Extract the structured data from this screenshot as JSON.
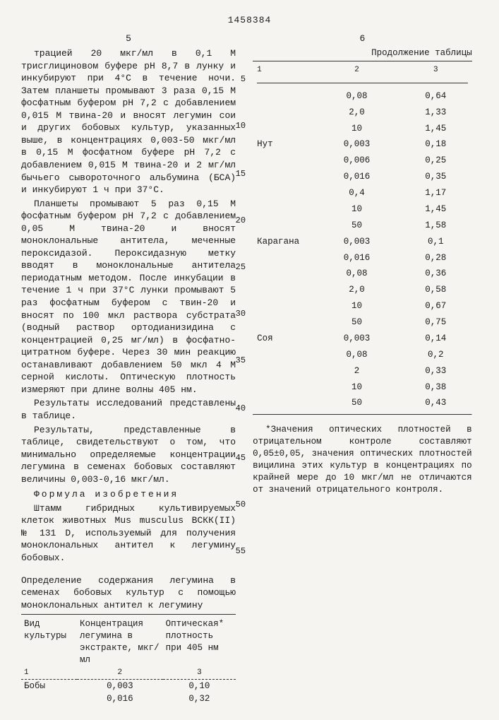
{
  "doc_number": "1458384",
  "left_page_num": "5",
  "right_page_num": "6",
  "cont_label": "Продолжение таблицы",
  "left_text": {
    "p1": "трацией 20 мкг/мл в 0,1 М трисглициновом буфере рН 8,7 в лунку и инкубируют при 4°С в течение ночи. Затем планшеты промывают 3 раза 0,15 М фосфатным буфером рН 7,2 с добавлением 0,015 М твина-20 и вносят легумин сои и других бобовых культур, указанных выше, в концентрациях 0,003-50 мкг/мл в 0,15 М фосфатном буфере рН 7,2 с добавлением 0,015 М твина-20 и 2 мг/мл бычьего сывороточного альбумина (БСА) и инкубируют 1 ч при 37°С.",
    "p2": "Планшеты промывают 5 раз 0,15 М фосфатным буфером рН 7,2 с добавлением 0,05 М твина-20 и вносят моноклональные антитела, меченные пероксидазой. Пероксидазную метку вводят в моноклональные антитела периодатным методом. После инкубации в течение 1 ч при 37°С лунки промывают 5 раз фосфатным буфером с твин-20 и вносят по 100 мкл раствора субстрата (водный раствор ортодианизидина с концентрацией 0,25 мг/мл) в фосфатно-цитратном буфере. Через 30 мин реакцию останавливают добавлением 50 мкл 4 М серной кислоты. Оптическую плотность измеряют при длине волны 405 нм.",
    "p3": "Результаты исследований представлены в таблице.",
    "p4": "Результаты, представленные в таблице, свидетельствуют о том, что минимально определяемые концентрации легумина в семенах бобовых составляют величины 0,003-0,16 мкг/мл.",
    "formula_title": "Формула изобретения",
    "p5": "Штамм гибридных культивируемых клеток животных Mus musculus ВСКК(II) № 131 D, используемый для получения моноклональных антител к легумину бобовых.",
    "caption": "Определение содержания легумина в семенах бобовых культур с помощью моноклональных антител к легумину"
  },
  "left_table": {
    "headers": [
      "Вид культуры",
      "Концентрация легумина в экстракте, мкг/мл",
      "Оптическая* плотность при 405 нм"
    ],
    "col_nums": [
      "1",
      "2",
      "3"
    ],
    "rows": [
      [
        "Бобы",
        "0,003",
        "0,10"
      ],
      [
        "",
        "0,016",
        "0,32"
      ]
    ]
  },
  "right_table": {
    "col_nums": [
      "1",
      "2",
      "3"
    ],
    "rows": [
      [
        "",
        "0,08",
        "0,64"
      ],
      [
        "",
        "2,0",
        "1,33"
      ],
      [
        "",
        "10",
        "1,45"
      ],
      [
        "Нут",
        "0,003",
        "0,18"
      ],
      [
        "",
        "0,006",
        "0,25"
      ],
      [
        "",
        "0,016",
        "0,35"
      ],
      [
        "",
        "0,4",
        "1,17"
      ],
      [
        "",
        "10",
        "1,45"
      ],
      [
        "",
        "50",
        "1,58"
      ],
      [
        "Карагана",
        "0,003",
        "0,1"
      ],
      [
        "",
        "0,016",
        "0,28"
      ],
      [
        "",
        "0,08",
        "0,36"
      ],
      [
        "",
        "2,0",
        "0,58"
      ],
      [
        "",
        "10",
        "0,67"
      ],
      [
        "",
        "50",
        "0,75"
      ],
      [
        "Соя",
        "0,003",
        "0,14"
      ],
      [
        "",
        "0,08",
        "0,2"
      ],
      [
        "",
        "2",
        "0,33"
      ],
      [
        "",
        "10",
        "0,38"
      ],
      [
        "",
        "50",
        "0,43"
      ]
    ]
  },
  "footnote": "*Значения оптических плотностей в отрицательном контроле составляют 0,05±0,05, значения оптических плотностей вицилина этих культур в концентрациях по крайней мере до 10 мкг/мл не отличаются от значений отрицательного контроля.",
  "line_nums_left": [
    "5",
    "10",
    "15",
    "20",
    "25",
    "30",
    "35",
    "40",
    "45",
    "50",
    "55"
  ],
  "line_nums_right_map": {}
}
